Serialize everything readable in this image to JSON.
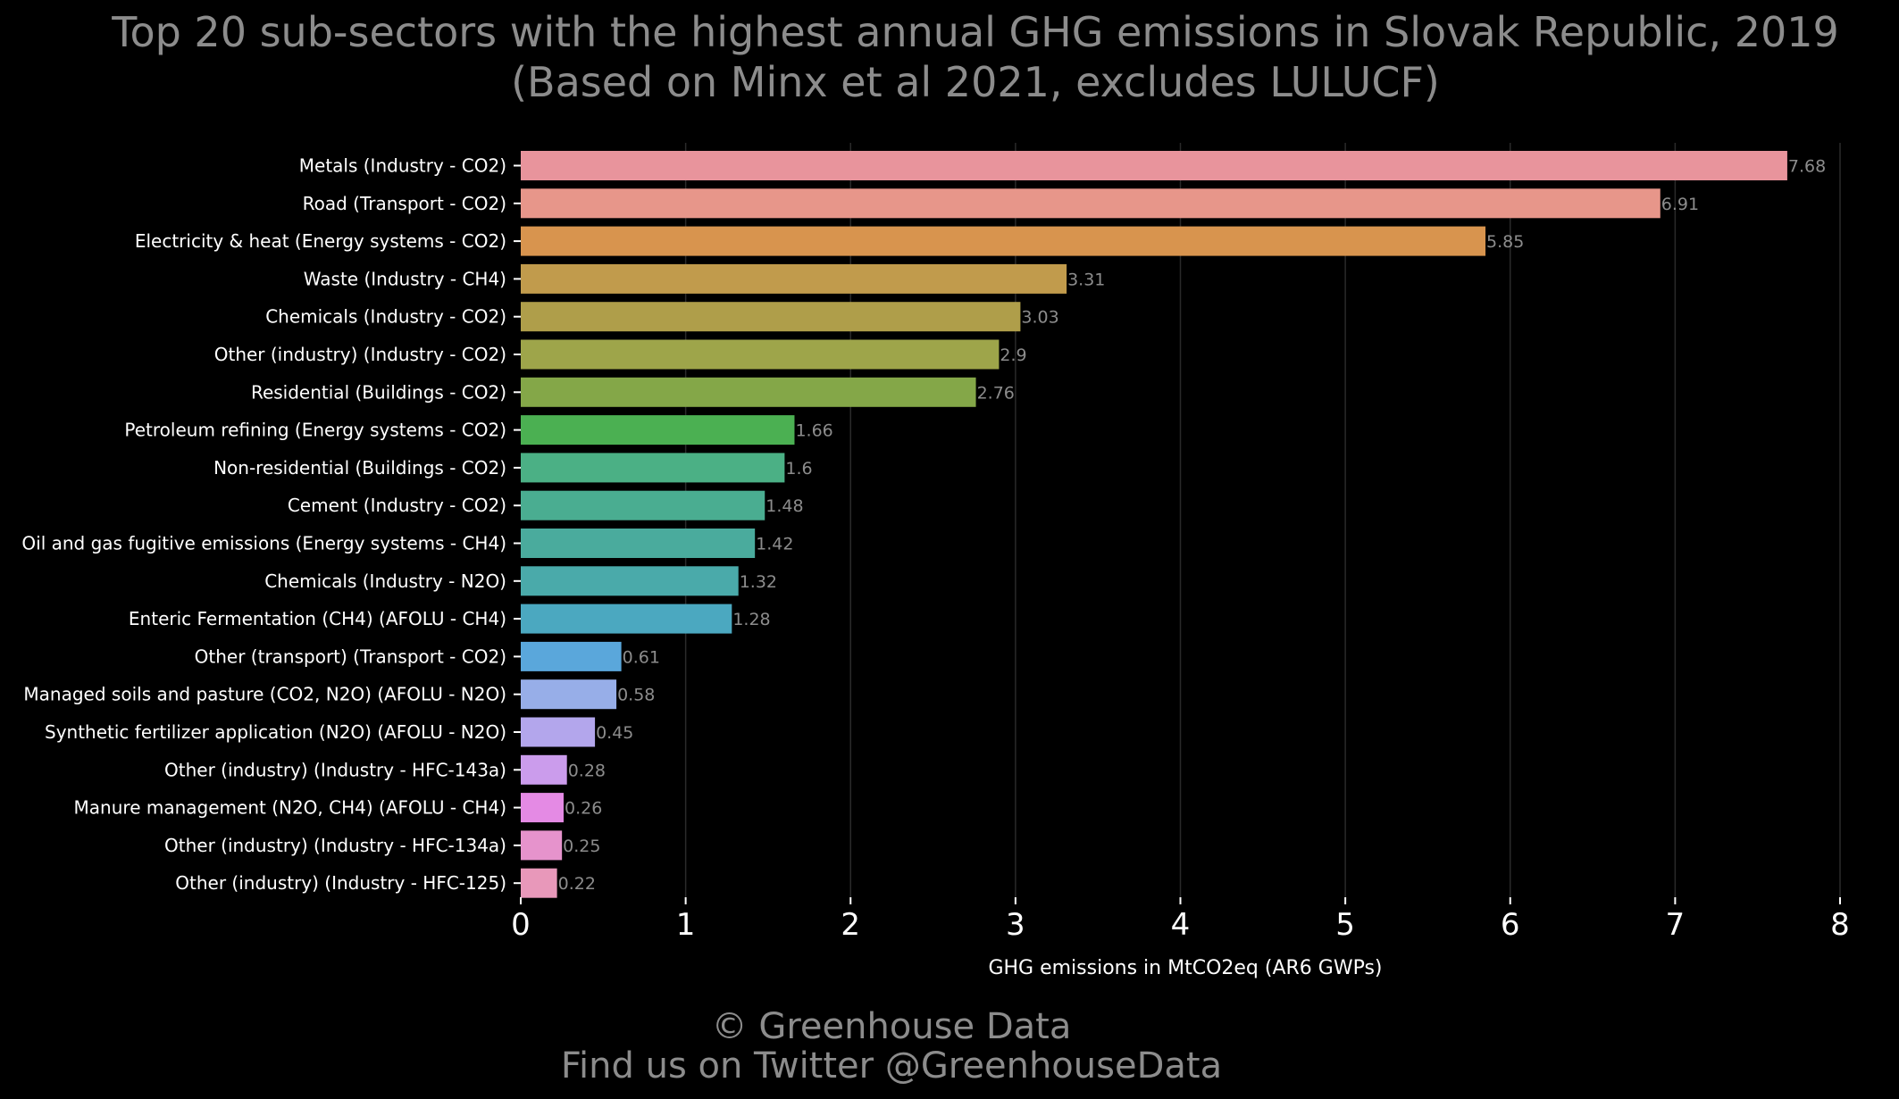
{
  "chart_data": {
    "type": "bar",
    "orientation": "horizontal",
    "title": "Top 20 sub-sectors with the highest annual GHG emissions in Slovak Republic, 2019",
    "subtitle": "(Based on Minx et al 2021, excludes LULUCF)",
    "xlabel": "GHG emissions in MtCO2eq (AR6 GWPs)",
    "ylabel": "",
    "xlim": [
      0,
      8
    ],
    "xticks": [
      0,
      1,
      2,
      3,
      4,
      5,
      6,
      7,
      8
    ],
    "grid": "vertical",
    "categories": [
      "Metals (Industry - CO2)",
      "Road (Transport - CO2)",
      "Electricity & heat (Energy systems - CO2)",
      "Waste (Industry - CH4)",
      "Chemicals (Industry - CO2)",
      "Other (industry) (Industry - CO2)",
      "Residential (Buildings - CO2)",
      "Petroleum refining (Energy systems - CO2)",
      "Non-residential (Buildings - CO2)",
      "Cement (Industry - CO2)",
      "Oil and gas fugitive emissions (Energy systems - CH4)",
      "Chemicals (Industry - N2O)",
      "Enteric Fermentation (CH4) (AFOLU - CH4)",
      "Other (transport) (Transport - CO2)",
      "Managed soils and pasture (CO2, N2O) (AFOLU - N2O)",
      "Synthetic fertilizer application (N2O) (AFOLU - N2O)",
      "Other (industry) (Industry - HFC-143a)",
      "Manure management (N2O, CH4) (AFOLU - CH4)",
      "Other (industry) (Industry - HFC-134a)",
      "Other (industry) (Industry - HFC-125)"
    ],
    "values": [
      7.68,
      6.91,
      5.85,
      3.31,
      3.03,
      2.9,
      2.76,
      1.66,
      1.6,
      1.48,
      1.42,
      1.32,
      1.28,
      0.61,
      0.58,
      0.45,
      0.28,
      0.26,
      0.25,
      0.22
    ],
    "value_labels": [
      "7.68",
      "6.91",
      "5.85",
      "3.31",
      "3.03",
      "2.9",
      "2.76",
      "1.66",
      "1.6",
      "1.48",
      "1.42",
      "1.32",
      "1.28",
      "0.61",
      "0.58",
      "0.45",
      "0.28",
      "0.26",
      "0.25",
      "0.22"
    ],
    "colors": [
      "#e8949c",
      "#e7968a",
      "#d8944e",
      "#c19b4c",
      "#af9e4a",
      "#9ea54a",
      "#84a748",
      "#4bb052",
      "#4bb085",
      "#4aad91",
      "#4aab9d",
      "#4aaaaa",
      "#4ba8c0",
      "#5aa7db",
      "#97aee8",
      "#b3a6ec",
      "#cb9cec",
      "#e48ae4",
      "#e693cc",
      "#e898ba"
    ]
  },
  "footer": {
    "line1": "© Greenhouse Data",
    "line2": "Find us on Twitter @GreenhouseData"
  }
}
